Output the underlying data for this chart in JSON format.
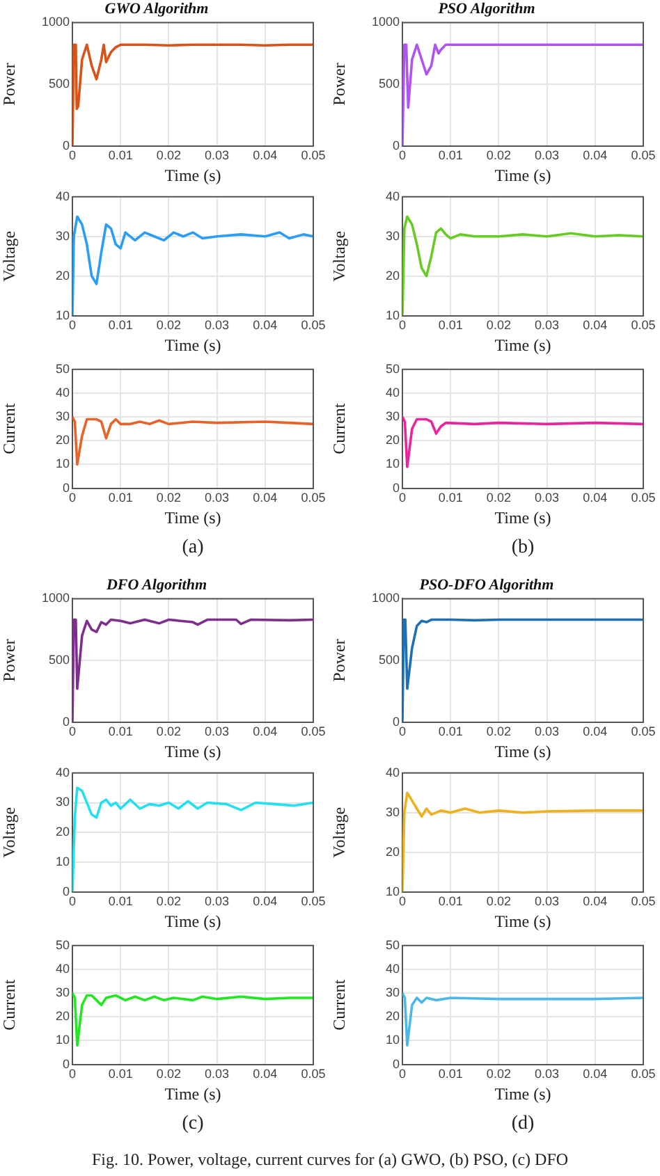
{
  "chart_data": [
    {
      "type": "line",
      "title": "GWO Algorithm",
      "xlabel": "Time (s)",
      "ylabel": "Power",
      "xlim": [
        0,
        0.05
      ],
      "xticks": [
        0,
        0.01,
        0.02,
        0.03,
        0.04,
        0.05
      ],
      "ylim": [
        0,
        1000
      ],
      "yticks": [
        0,
        500,
        1000
      ],
      "grid": true,
      "series": [
        {
          "color": "#d95319",
          "x": [
            0,
            0.0003,
            0.0007,
            0.0009,
            0.0012,
            0.002,
            0.003,
            0.004,
            0.005,
            0.006,
            0.0065,
            0.007,
            0.008,
            0.009,
            0.01,
            0.015,
            0.02,
            0.025,
            0.03,
            0.035,
            0.04,
            0.045,
            0.05
          ],
          "values": [
            0,
            820,
            820,
            300,
            320,
            700,
            820,
            650,
            540,
            700,
            820,
            680,
            760,
            800,
            820,
            820,
            815,
            820,
            820,
            820,
            815,
            820,
            820
          ]
        }
      ]
    },
    {
      "type": "line",
      "title": "PSO Algorithm",
      "xlabel": "Time (s)",
      "ylabel": "Power",
      "xlim": [
        0,
        0.05
      ],
      "xticks": [
        0,
        0.01,
        0.02,
        0.03,
        0.04,
        0.05
      ],
      "ylim": [
        0,
        1000
      ],
      "yticks": [
        0,
        500,
        1000
      ],
      "grid": true,
      "series": [
        {
          "color": "#b054f0",
          "x": [
            0,
            0.0004,
            0.0008,
            0.0012,
            0.002,
            0.003,
            0.004,
            0.005,
            0.006,
            0.0068,
            0.0075,
            0.008,
            0.009,
            0.02,
            0.03,
            0.04,
            0.05
          ],
          "values": [
            0,
            820,
            820,
            310,
            700,
            820,
            700,
            580,
            650,
            820,
            750,
            780,
            820,
            820,
            820,
            820,
            820
          ]
        }
      ]
    },
    {
      "type": "line",
      "xlabel": "Time (s)",
      "ylabel": "Voltage",
      "xlim": [
        0,
        0.05
      ],
      "xticks": [
        0,
        0.01,
        0.02,
        0.03,
        0.04,
        0.05
      ],
      "ylim": [
        10,
        40
      ],
      "yticks": [
        10,
        20,
        30,
        40
      ],
      "grid": true,
      "series": [
        {
          "color": "#2a9df4",
          "x": [
            0,
            0.0003,
            0.001,
            0.002,
            0.003,
            0.004,
            0.005,
            0.006,
            0.007,
            0.008,
            0.009,
            0.01,
            0.011,
            0.013,
            0.015,
            0.017,
            0.019,
            0.021,
            0.023,
            0.025,
            0.027,
            0.03,
            0.035,
            0.04,
            0.043,
            0.045,
            0.048,
            0.05
          ],
          "values": [
            10,
            30,
            35,
            33,
            28,
            20,
            18,
            26,
            33,
            32,
            28,
            27,
            31,
            29,
            31,
            30,
            29,
            31,
            30,
            31,
            29.5,
            30,
            30.5,
            30,
            31,
            29.5,
            30.5,
            30
          ]
        }
      ]
    },
    {
      "type": "line",
      "xlabel": "Time (s)",
      "ylabel": "Voltage",
      "xlim": [
        0,
        0.05
      ],
      "xticks": [
        0,
        0.01,
        0.02,
        0.03,
        0.04,
        0.05
      ],
      "ylim": [
        10,
        40
      ],
      "yticks": [
        10,
        20,
        30,
        40
      ],
      "grid": true,
      "series": [
        {
          "color": "#66cc22",
          "x": [
            0,
            0.0004,
            0.001,
            0.002,
            0.003,
            0.004,
            0.005,
            0.006,
            0.007,
            0.008,
            0.009,
            0.01,
            0.012,
            0.015,
            0.02,
            0.025,
            0.03,
            0.035,
            0.04,
            0.045,
            0.05
          ],
          "values": [
            10,
            32,
            35,
            33,
            28,
            22,
            20,
            25,
            31,
            32,
            30.5,
            29.5,
            30.5,
            30,
            30,
            30.5,
            30,
            30.8,
            30,
            30.3,
            30
          ]
        }
      ]
    },
    {
      "type": "line",
      "xlabel": "Time (s)",
      "ylabel": "Current",
      "xlim": [
        0,
        0.05
      ],
      "xticks": [
        0,
        0.01,
        0.02,
        0.03,
        0.04,
        0.05
      ],
      "ylim": [
        0,
        50
      ],
      "yticks": [
        0,
        10,
        20,
        30,
        40,
        50
      ],
      "grid": true,
      "annotations": [
        "(a)"
      ],
      "series": [
        {
          "color": "#e8632a",
          "x": [
            0,
            0.0005,
            0.001,
            0.002,
            0.003,
            0.005,
            0.006,
            0.007,
            0.008,
            0.009,
            0.01,
            0.012,
            0.014,
            0.016,
            0.018,
            0.02,
            0.025,
            0.03,
            0.04,
            0.045,
            0.05
          ],
          "values": [
            30,
            28,
            10,
            22,
            29,
            29,
            28,
            21,
            27,
            29,
            27,
            27,
            28,
            27,
            28.5,
            27,
            28,
            27.5,
            28,
            27.5,
            27
          ]
        }
      ]
    },
    {
      "type": "line",
      "xlabel": "Time (s)",
      "ylabel": "Current",
      "xlim": [
        0,
        0.05
      ],
      "xticks": [
        0,
        0.01,
        0.02,
        0.03,
        0.04,
        0.05
      ],
      "ylim": [
        0,
        50
      ],
      "yticks": [
        0,
        10,
        20,
        30,
        40,
        50
      ],
      "grid": true,
      "annotations": [
        "(b)"
      ],
      "series": [
        {
          "color": "#e8259c",
          "x": [
            0,
            0.0005,
            0.001,
            0.002,
            0.003,
            0.005,
            0.006,
            0.007,
            0.008,
            0.009,
            0.015,
            0.02,
            0.03,
            0.04,
            0.05
          ],
          "values": [
            30,
            28,
            9,
            25,
            29,
            29,
            28,
            23,
            26,
            27.5,
            27,
            27.5,
            27,
            27.5,
            27
          ]
        }
      ]
    },
    {
      "type": "line",
      "title": "DFO Algorithm",
      "xlabel": "Time (s)",
      "ylabel": "Power",
      "xlim": [
        0,
        0.05
      ],
      "xticks": [
        0,
        0.01,
        0.02,
        0.03,
        0.04,
        0.05
      ],
      "ylim": [
        0,
        1000
      ],
      "yticks": [
        0,
        500,
        1000
      ],
      "grid": true,
      "series": [
        {
          "color": "#7e2f8e",
          "x": [
            0,
            0.0003,
            0.0007,
            0.001,
            0.002,
            0.003,
            0.004,
            0.005,
            0.006,
            0.007,
            0.008,
            0.01,
            0.012,
            0.015,
            0.018,
            0.02,
            0.025,
            0.026,
            0.028,
            0.034,
            0.035,
            0.037,
            0.045,
            0.05
          ],
          "values": [
            0,
            830,
            830,
            270,
            700,
            820,
            750,
            730,
            810,
            790,
            830,
            820,
            800,
            830,
            800,
            830,
            810,
            790,
            830,
            830,
            795,
            830,
            825,
            830
          ]
        }
      ]
    },
    {
      "type": "line",
      "title": "PSO-DFO Algorithm",
      "xlabel": "Time (s)",
      "ylabel": "Power",
      "xlim": [
        0,
        0.05
      ],
      "xticks": [
        0,
        0.01,
        0.02,
        0.03,
        0.04,
        0.05
      ],
      "ylim": [
        0,
        1000
      ],
      "yticks": [
        0,
        500,
        1000
      ],
      "grid": true,
      "series": [
        {
          "color": "#1f6fb5",
          "x": [
            0,
            0.0003,
            0.0006,
            0.001,
            0.002,
            0.003,
            0.004,
            0.005,
            0.006,
            0.01,
            0.015,
            0.02,
            0.03,
            0.04,
            0.05
          ],
          "values": [
            0,
            830,
            830,
            270,
            600,
            780,
            820,
            810,
            830,
            830,
            825,
            830,
            830,
            830,
            830
          ]
        }
      ]
    },
    {
      "type": "line",
      "xlabel": "Time (s)",
      "ylabel": "Voltage",
      "xlim": [
        0,
        0.05
      ],
      "xticks": [
        0,
        0.01,
        0.02,
        0.03,
        0.04,
        0.05
      ],
      "ylim": [
        0,
        40
      ],
      "yticks": [
        0,
        10,
        20,
        30,
        40
      ],
      "grid": true,
      "series": [
        {
          "color": "#22e0f0",
          "x": [
            0,
            0.0005,
            0.001,
            0.002,
            0.003,
            0.004,
            0.005,
            0.006,
            0.007,
            0.008,
            0.009,
            0.01,
            0.012,
            0.014,
            0.016,
            0.018,
            0.02,
            0.022,
            0.024,
            0.026,
            0.028,
            0.032,
            0.035,
            0.038,
            0.042,
            0.046,
            0.05
          ],
          "values": [
            0,
            25,
            35,
            34,
            30,
            26,
            25,
            30,
            31,
            29,
            30,
            28,
            31,
            28,
            29.5,
            29,
            30,
            28,
            30.5,
            28,
            30,
            29.5,
            27.5,
            30,
            29.5,
            29,
            30
          ]
        }
      ]
    },
    {
      "type": "line",
      "xlabel": "Time (s)",
      "ylabel": "Voltage",
      "xlim": [
        0,
        0.05
      ],
      "xticks": [
        0,
        0.01,
        0.02,
        0.03,
        0.04,
        0.05
      ],
      "ylim": [
        10,
        40
      ],
      "yticks": [
        10,
        20,
        30,
        40
      ],
      "grid": true,
      "series": [
        {
          "color": "#edb120",
          "x": [
            0,
            0.0004,
            0.001,
            0.002,
            0.003,
            0.004,
            0.005,
            0.006,
            0.008,
            0.01,
            0.013,
            0.016,
            0.02,
            0.025,
            0.03,
            0.04,
            0.05
          ],
          "values": [
            10,
            30,
            35,
            33,
            31,
            29,
            31,
            29.5,
            30.5,
            30,
            31,
            30,
            30.5,
            30,
            30.3,
            30.5,
            30.5
          ]
        }
      ]
    },
    {
      "type": "line",
      "xlabel": "Time (s)",
      "ylabel": "Current",
      "xlim": [
        0,
        0.05
      ],
      "xticks": [
        0,
        0.01,
        0.02,
        0.03,
        0.04,
        0.05
      ],
      "ylim": [
        0,
        50
      ],
      "yticks": [
        0,
        10,
        20,
        30,
        40,
        50
      ],
      "grid": true,
      "annotations": [
        "(c)"
      ],
      "series": [
        {
          "color": "#22e822",
          "x": [
            0,
            0.0005,
            0.001,
            0.002,
            0.003,
            0.004,
            0.005,
            0.006,
            0.007,
            0.009,
            0.011,
            0.013,
            0.015,
            0.017,
            0.019,
            0.021,
            0.025,
            0.027,
            0.03,
            0.035,
            0.04,
            0.045,
            0.05
          ],
          "values": [
            30,
            28,
            8,
            25,
            29,
            29,
            27,
            25,
            28,
            29,
            27,
            28.5,
            27,
            28.5,
            27,
            28,
            27,
            28.5,
            27.5,
            28.5,
            27.5,
            28,
            28
          ]
        }
      ]
    },
    {
      "type": "line",
      "xlabel": "Time (s)",
      "ylabel": "Current",
      "xlim": [
        0,
        0.05
      ],
      "xticks": [
        0,
        0.01,
        0.02,
        0.03,
        0.04,
        0.05
      ],
      "ylim": [
        0,
        50
      ],
      "yticks": [
        0,
        10,
        20,
        30,
        40,
        50
      ],
      "grid": true,
      "annotations": [
        "(d)",
        "Fig. 10. Power, voltage, current curves for (a) GWO, (b) PSO, (c) DFO"
      ],
      "series": [
        {
          "color": "#4db8e8",
          "x": [
            0,
            0.0005,
            0.001,
            0.002,
            0.003,
            0.004,
            0.005,
            0.007,
            0.01,
            0.02,
            0.03,
            0.04,
            0.05
          ],
          "values": [
            30,
            28,
            8,
            25,
            28,
            26,
            28,
            27,
            28,
            27.5,
            27.5,
            27.5,
            28
          ]
        }
      ]
    }
  ]
}
